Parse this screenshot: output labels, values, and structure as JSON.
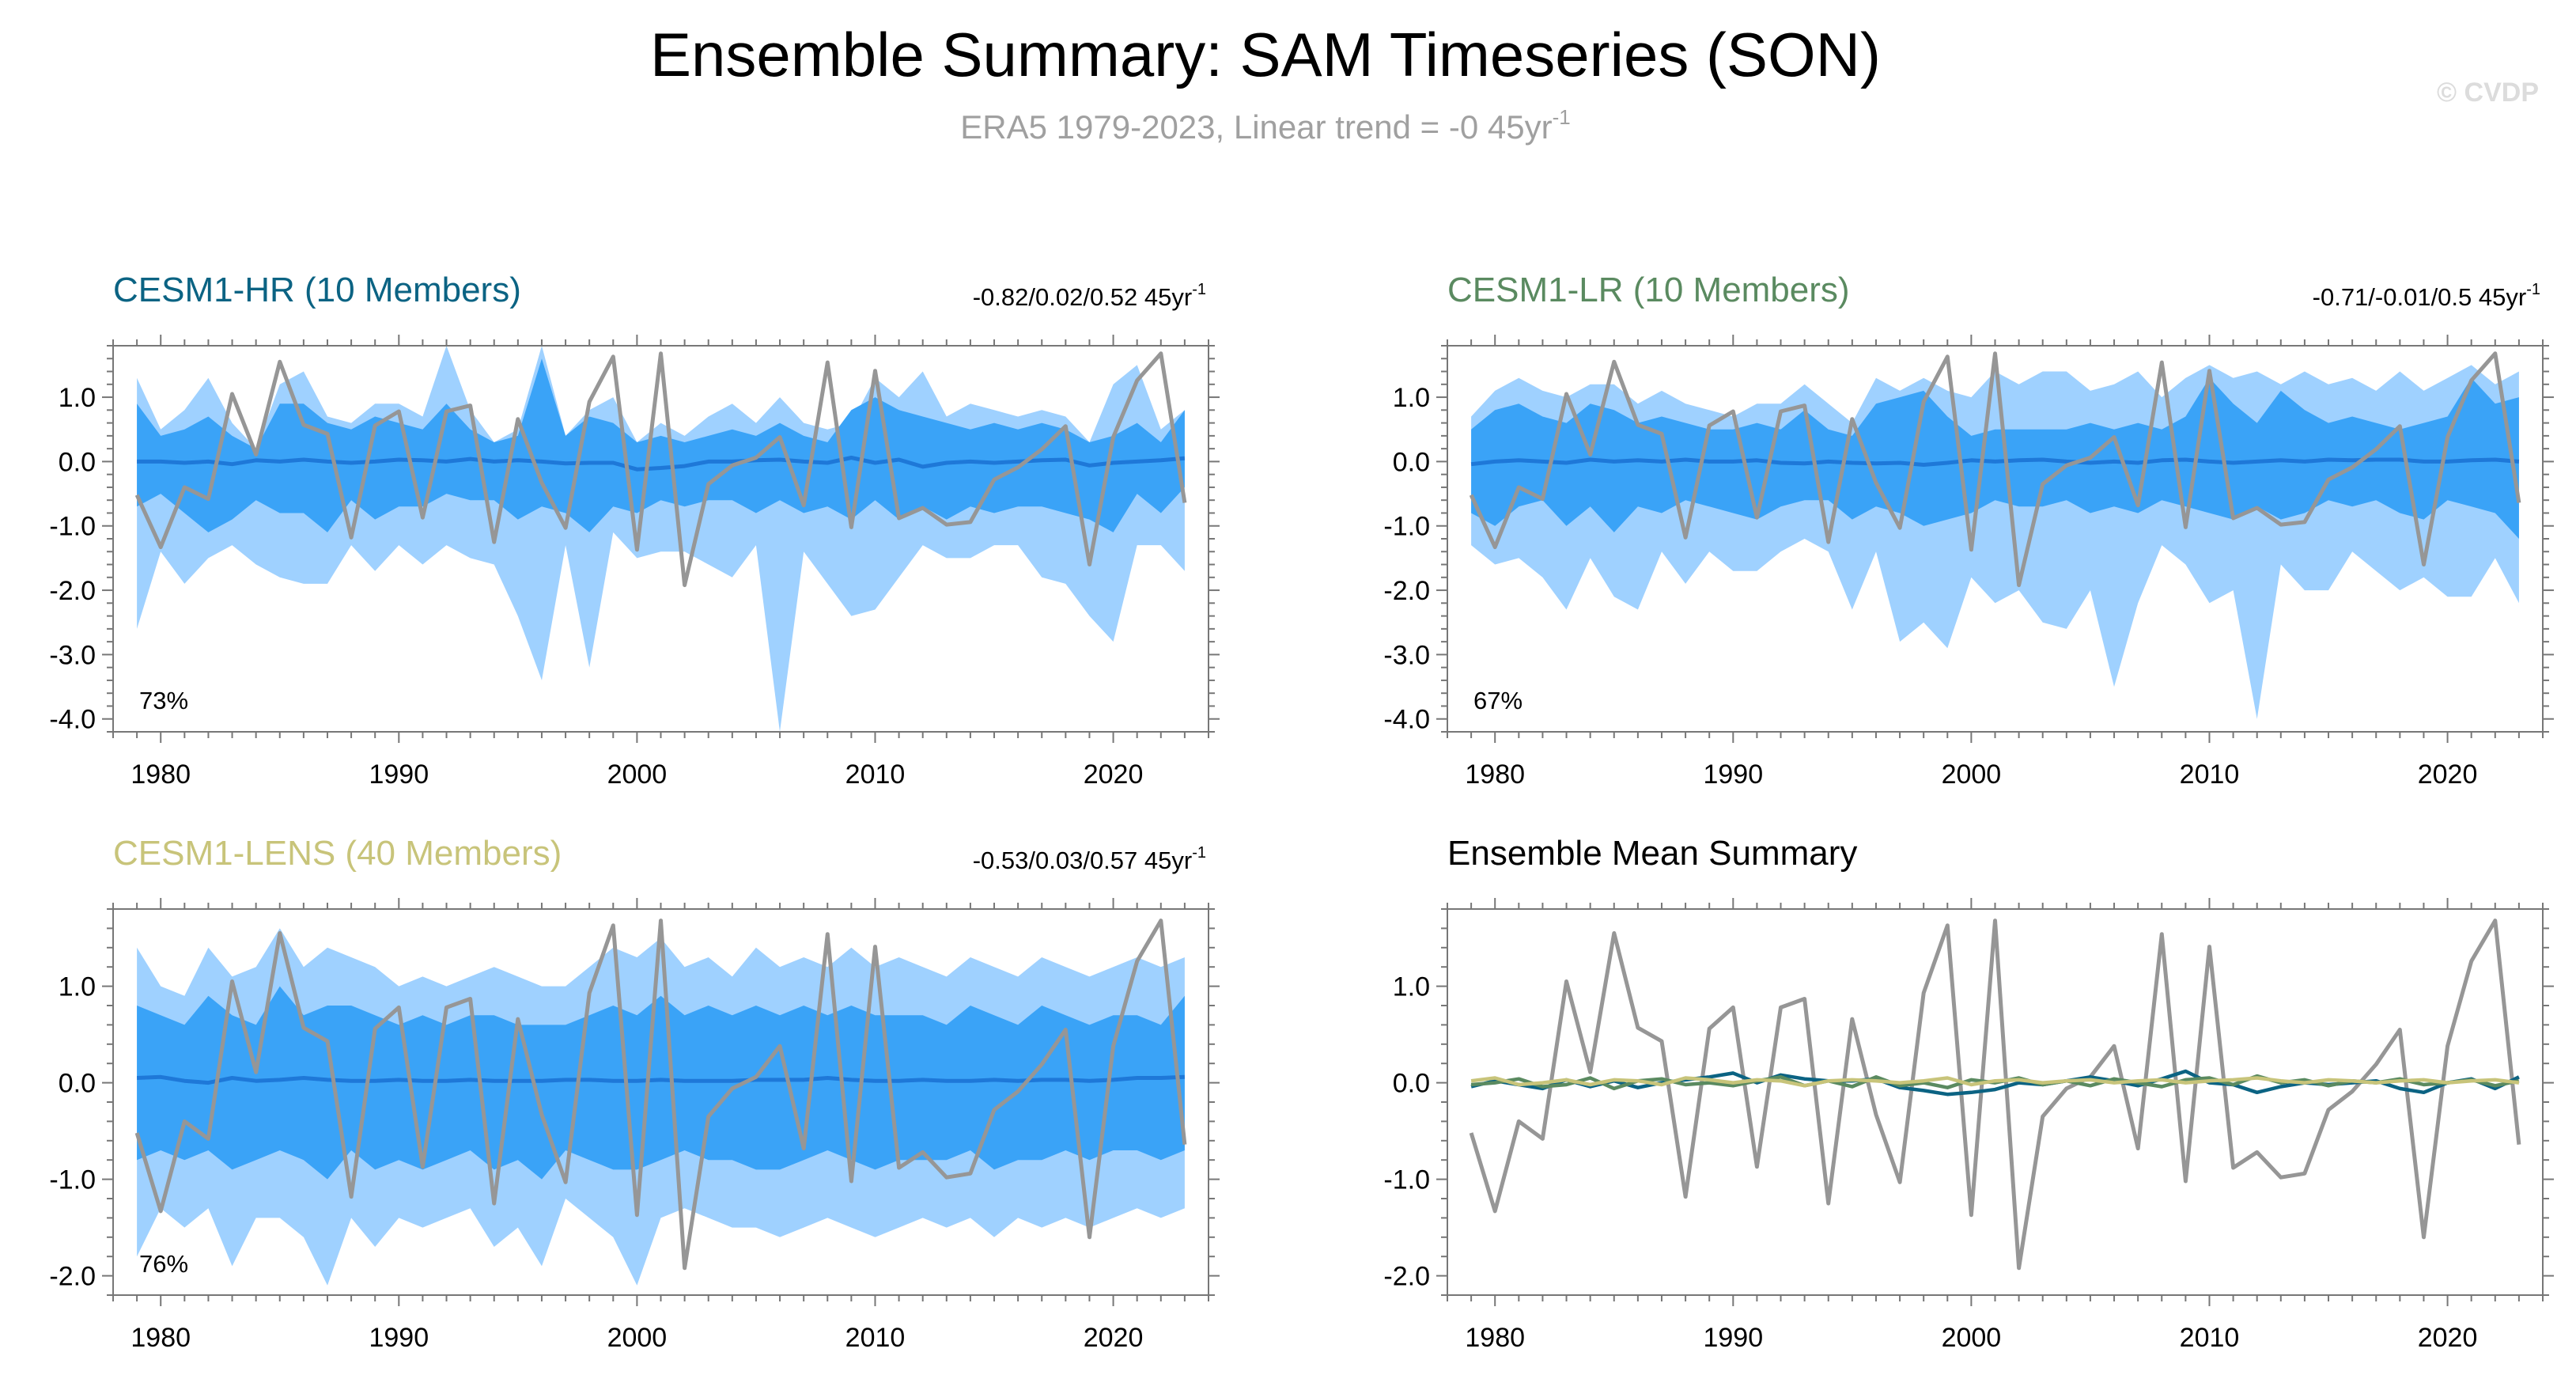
{
  "figure": {
    "title": "Ensemble Summary: SAM Timeseries (SON)",
    "subtitle_text": "ERA5 1979-2023, Linear trend = -0 45yr",
    "subtitle_sup": "-1",
    "credit": "© CVDP"
  },
  "colors": {
    "outer_band": "#9fd1ff",
    "inner_band": "#3aa3f7",
    "ens_mean_line": "#1e78d8",
    "obs_line": "#969696",
    "hr": "#0b6383",
    "lr": "#5a8a60",
    "lens": "#c8c47a"
  },
  "chart_data": [
    {
      "id": "hr",
      "type": "area",
      "title": "CESM1-HR (10 Members)",
      "stats_text": "-0.82/0.02/0.52 45yr",
      "stats_sup": "-1",
      "percent_label": "73%",
      "x_start": 1979,
      "xlim": [
        1978,
        2024
      ],
      "ylim": [
        -4.2,
        1.8
      ],
      "xticks": [
        1980,
        1990,
        2000,
        2010,
        2020
      ],
      "yticks": [
        1.0,
        0.0,
        -1.0,
        -2.0,
        -3.0,
        -4.0
      ],
      "ytick_labels": [
        "1.0",
        "0.0",
        "-1.0",
        "-2.0",
        "-3.0",
        "-4.0"
      ],
      "outer_upper": [
        1.3,
        0.5,
        0.8,
        1.3,
        0.6,
        0.2,
        1.2,
        1.4,
        0.7,
        0.6,
        0.9,
        0.9,
        0.7,
        1.8,
        0.8,
        0.3,
        0.5,
        1.8,
        0.4,
        0.8,
        1.0,
        0.3,
        0.6,
        0.4,
        0.7,
        0.9,
        0.6,
        1.0,
        0.6,
        0.5,
        0.6,
        1.3,
        1.0,
        1.4,
        0.7,
        0.9,
        0.8,
        0.7,
        0.8,
        0.7,
        0.3,
        1.2,
        1.5,
        0.5,
        0.8
      ],
      "outer_lower": [
        -2.6,
        -1.4,
        -1.9,
        -1.5,
        -1.3,
        -1.6,
        -1.8,
        -1.9,
        -1.9,
        -1.3,
        -1.7,
        -1.3,
        -1.6,
        -1.3,
        -1.5,
        -1.6,
        -2.4,
        -3.4,
        -1.3,
        -3.2,
        -1.1,
        -1.5,
        -1.4,
        -1.4,
        -1.6,
        -1.8,
        -1.3,
        -4.2,
        -1.4,
        -1.9,
        -2.4,
        -2.3,
        -1.8,
        -1.3,
        -1.5,
        -1.5,
        -1.3,
        -1.3,
        -1.8,
        -1.9,
        -2.4,
        -2.8,
        -1.3,
        -1.3,
        -1.7
      ],
      "inner_upper": [
        0.9,
        0.4,
        0.5,
        0.7,
        0.4,
        0.2,
        0.9,
        0.9,
        0.6,
        0.5,
        0.7,
        0.6,
        0.5,
        0.9,
        0.5,
        0.3,
        0.4,
        1.6,
        0.4,
        0.7,
        0.6,
        0.3,
        0.4,
        0.3,
        0.4,
        0.5,
        0.4,
        0.6,
        0.4,
        0.3,
        0.8,
        1.0,
        0.8,
        0.7,
        0.6,
        0.5,
        0.6,
        0.5,
        0.6,
        0.5,
        0.3,
        0.4,
        0.6,
        0.3,
        0.8
      ],
      "inner_lower": [
        -0.7,
        -0.5,
        -0.8,
        -1.1,
        -0.9,
        -0.6,
        -0.8,
        -0.8,
        -1.1,
        -0.6,
        -0.9,
        -0.7,
        -0.7,
        -0.5,
        -0.6,
        -0.6,
        -0.9,
        -0.7,
        -0.8,
        -1.1,
        -0.7,
        -0.8,
        -0.6,
        -0.7,
        -0.6,
        -0.6,
        -0.8,
        -0.6,
        -0.8,
        -0.7,
        -0.9,
        -0.6,
        -0.9,
        -0.7,
        -0.9,
        -0.7,
        -0.8,
        -0.7,
        -0.7,
        -0.8,
        -0.9,
        -1.1,
        -0.5,
        -0.8,
        -0.4
      ],
      "ensemble_mean": [
        0.0,
        0.0,
        -0.02,
        0.0,
        -0.04,
        0.02,
        0.0,
        0.03,
        0.0,
        -0.02,
        0.0,
        0.03,
        0.02,
        0.0,
        0.04,
        0.0,
        0.02,
        0.0,
        -0.03,
        -0.02,
        -0.02,
        -0.12,
        -0.1,
        -0.07,
        0.0,
        0.0,
        0.02,
        0.03,
        0.0,
        -0.02,
        0.06,
        -0.02,
        0.03,
        -0.08,
        -0.02,
        0.0,
        -0.02,
        0.0,
        0.02,
        0.03,
        -0.06,
        -0.02,
        0.0,
        0.02,
        0.05
      ],
      "observed": [
        -0.52,
        -1.33,
        -0.4,
        -0.58,
        1.05,
        0.11,
        1.55,
        0.57,
        0.43,
        -1.18,
        0.56,
        0.78,
        -0.87,
        0.78,
        0.87,
        -1.25,
        0.66,
        -0.33,
        -1.03,
        0.93,
        1.63,
        -1.37,
        1.68,
        -1.92,
        -0.35,
        -0.06,
        0.06,
        0.38,
        -0.68,
        1.54,
        -1.02,
        1.41,
        -0.88,
        -0.72,
        -0.98,
        -0.94,
        -0.28,
        -0.09,
        0.19,
        0.55,
        -1.6,
        0.38,
        1.26,
        1.68,
        -0.64
      ]
    },
    {
      "id": "lr",
      "type": "area",
      "title": "CESM1-LR (10 Members)",
      "stats_text": "-0.71/-0.01/0.5 45yr",
      "stats_sup": "-1",
      "percent_label": "67%",
      "x_start": 1979,
      "xlim": [
        1978,
        2024
      ],
      "ylim": [
        -4.2,
        1.8
      ],
      "xticks": [
        1980,
        1990,
        2000,
        2010,
        2020
      ],
      "yticks": [
        1.0,
        0.0,
        -1.0,
        -2.0,
        -3.0,
        -4.0
      ],
      "ytick_labels": [
        "1.0",
        "0.0",
        "-1.0",
        "-2.0",
        "-3.0",
        "-4.0"
      ],
      "outer_upper": [
        0.7,
        1.1,
        1.3,
        1.1,
        1.0,
        1.2,
        1.2,
        0.9,
        1.1,
        0.9,
        0.8,
        0.7,
        0.9,
        0.9,
        1.2,
        0.9,
        0.6,
        1.3,
        1.1,
        1.3,
        1.1,
        1.0,
        1.4,
        1.2,
        1.4,
        1.4,
        1.1,
        1.2,
        1.4,
        1.0,
        1.3,
        1.5,
        1.3,
        1.4,
        1.2,
        1.4,
        1.2,
        1.3,
        1.1,
        1.4,
        1.1,
        1.3,
        1.5,
        1.2,
        1.4
      ],
      "outer_lower": [
        -1.3,
        -1.6,
        -1.5,
        -1.8,
        -2.3,
        -1.5,
        -2.1,
        -2.3,
        -1.4,
        -1.9,
        -1.4,
        -1.7,
        -1.7,
        -1.4,
        -1.2,
        -1.4,
        -2.3,
        -1.4,
        -2.8,
        -2.5,
        -2.9,
        -1.8,
        -2.2,
        -2.0,
        -2.5,
        -2.6,
        -2.0,
        -3.5,
        -2.2,
        -1.3,
        -1.6,
        -2.2,
        -2.0,
        -4.0,
        -1.6,
        -2.0,
        -2.0,
        -1.4,
        -1.7,
        -2.0,
        -1.8,
        -2.1,
        -2.1,
        -1.5,
        -2.2
      ],
      "inner_upper": [
        0.5,
        0.8,
        0.9,
        0.7,
        0.6,
        0.9,
        0.8,
        0.6,
        0.7,
        0.6,
        0.5,
        0.5,
        0.6,
        0.5,
        0.8,
        0.5,
        0.4,
        0.9,
        1.0,
        1.1,
        0.7,
        0.4,
        0.5,
        0.5,
        0.5,
        0.5,
        0.6,
        0.5,
        0.6,
        0.5,
        0.7,
        1.3,
        0.9,
        0.6,
        1.1,
        0.8,
        0.6,
        0.7,
        0.6,
        0.5,
        0.6,
        0.7,
        1.3,
        0.9,
        1.0
      ],
      "inner_lower": [
        -0.8,
        -1.0,
        -0.7,
        -0.6,
        -1.0,
        -0.7,
        -1.1,
        -0.7,
        -0.8,
        -0.6,
        -0.7,
        -0.8,
        -0.9,
        -0.7,
        -0.6,
        -0.6,
        -0.9,
        -0.7,
        -0.8,
        -1.0,
        -0.9,
        -0.8,
        -0.6,
        -0.7,
        -0.7,
        -0.6,
        -0.8,
        -0.7,
        -0.8,
        -0.6,
        -0.7,
        -0.8,
        -0.9,
        -0.7,
        -0.9,
        -0.8,
        -0.6,
        -0.7,
        -0.6,
        -0.8,
        -0.9,
        -0.6,
        -0.7,
        -0.8,
        -1.2
      ],
      "ensemble_mean": [
        -0.04,
        0.0,
        0.02,
        0.0,
        -0.02,
        0.03,
        0.0,
        0.02,
        0.0,
        0.03,
        0.0,
        0.0,
        0.02,
        -0.02,
        -0.03,
        0.0,
        -0.02,
        -0.03,
        -0.02,
        -0.05,
        -0.02,
        0.02,
        0.0,
        0.02,
        0.03,
        0.0,
        -0.02,
        0.0,
        -0.02,
        0.02,
        0.03,
        0.0,
        -0.02,
        0.0,
        0.02,
        0.0,
        0.03,
        0.02,
        0.03,
        0.03,
        0.0,
        0.0,
        0.02,
        0.03,
        0.0
      ],
      "observed": [
        -0.52,
        -1.33,
        -0.4,
        -0.58,
        1.05,
        0.11,
        1.55,
        0.57,
        0.43,
        -1.18,
        0.56,
        0.78,
        -0.87,
        0.78,
        0.87,
        -1.25,
        0.66,
        -0.33,
        -1.03,
        0.93,
        1.63,
        -1.37,
        1.68,
        -1.92,
        -0.35,
        -0.06,
        0.06,
        0.38,
        -0.68,
        1.54,
        -1.02,
        1.41,
        -0.88,
        -0.72,
        -0.98,
        -0.94,
        -0.28,
        -0.09,
        0.19,
        0.55,
        -1.6,
        0.38,
        1.26,
        1.68,
        -0.64
      ]
    },
    {
      "id": "lens",
      "type": "area",
      "title": "CESM1-LENS (40 Members)",
      "stats_text": "-0.53/0.03/0.57 45yr",
      "stats_sup": "-1",
      "percent_label": "76%",
      "x_start": 1979,
      "xlim": [
        1978,
        2024
      ],
      "ylim": [
        -2.2,
        1.8
      ],
      "xticks": [
        1980,
        1990,
        2000,
        2010,
        2020
      ],
      "yticks": [
        1.0,
        0.0,
        -1.0,
        -2.0
      ],
      "ytick_labels": [
        "1.0",
        "0.0",
        "-1.0",
        "-2.0"
      ],
      "outer_upper": [
        1.4,
        1.0,
        0.9,
        1.4,
        1.1,
        1.2,
        1.6,
        1.2,
        1.4,
        1.3,
        1.2,
        1.0,
        1.1,
        1.0,
        1.1,
        1.2,
        1.1,
        1.0,
        1.0,
        1.2,
        1.4,
        1.3,
        1.5,
        1.2,
        1.3,
        1.1,
        1.4,
        1.2,
        1.3,
        1.2,
        1.4,
        1.2,
        1.3,
        1.2,
        1.1,
        1.3,
        1.2,
        1.1,
        1.3,
        1.2,
        1.1,
        1.2,
        1.3,
        1.2,
        1.3
      ],
      "outer_lower": [
        -1.8,
        -1.3,
        -1.5,
        -1.3,
        -1.9,
        -1.4,
        -1.4,
        -1.6,
        -2.1,
        -1.4,
        -1.7,
        -1.4,
        -1.5,
        -1.4,
        -1.3,
        -1.7,
        -1.5,
        -1.9,
        -1.2,
        -1.4,
        -1.6,
        -2.1,
        -1.4,
        -1.3,
        -1.4,
        -1.5,
        -1.5,
        -1.6,
        -1.5,
        -1.4,
        -1.5,
        -1.6,
        -1.5,
        -1.4,
        -1.5,
        -1.4,
        -1.6,
        -1.4,
        -1.5,
        -1.4,
        -1.5,
        -1.4,
        -1.3,
        -1.4,
        -1.3
      ],
      "inner_upper": [
        0.8,
        0.7,
        0.6,
        0.9,
        0.7,
        0.6,
        1.0,
        0.7,
        0.8,
        0.8,
        0.7,
        0.6,
        0.7,
        0.6,
        0.7,
        0.7,
        0.6,
        0.6,
        0.6,
        0.7,
        0.8,
        0.7,
        0.9,
        0.7,
        0.8,
        0.7,
        0.8,
        0.7,
        0.8,
        0.7,
        0.8,
        0.7,
        0.7,
        0.7,
        0.6,
        0.8,
        0.7,
        0.6,
        0.8,
        0.7,
        0.6,
        0.7,
        0.7,
        0.6,
        0.9
      ],
      "inner_lower": [
        -0.8,
        -0.7,
        -0.8,
        -0.7,
        -0.9,
        -0.8,
        -0.7,
        -0.8,
        -1.0,
        -0.7,
        -0.9,
        -0.8,
        -0.9,
        -0.8,
        -0.7,
        -0.9,
        -0.8,
        -1.0,
        -0.7,
        -0.8,
        -0.9,
        -0.9,
        -0.8,
        -0.7,
        -0.8,
        -0.8,
        -0.9,
        -0.9,
        -0.8,
        -0.7,
        -0.8,
        -0.9,
        -0.8,
        -0.8,
        -0.8,
        -0.7,
        -0.9,
        -0.8,
        -0.8,
        -0.7,
        -0.8,
        -0.7,
        -0.7,
        -0.8,
        -0.7
      ],
      "ensemble_mean": [
        0.05,
        0.06,
        0.02,
        0.0,
        0.05,
        0.02,
        0.03,
        0.05,
        0.03,
        0.02,
        0.02,
        0.03,
        0.02,
        0.02,
        0.03,
        0.02,
        0.02,
        0.02,
        0.03,
        0.03,
        0.02,
        0.02,
        0.03,
        0.02,
        0.02,
        0.02,
        0.03,
        0.03,
        0.03,
        0.05,
        0.03,
        0.02,
        0.02,
        0.03,
        0.02,
        0.02,
        0.03,
        0.02,
        0.03,
        0.03,
        0.02,
        0.03,
        0.05,
        0.05,
        0.06
      ],
      "observed": [
        -0.52,
        -1.33,
        -0.4,
        -0.58,
        1.05,
        0.11,
        1.55,
        0.57,
        0.43,
        -1.18,
        0.56,
        0.78,
        -0.87,
        0.78,
        0.87,
        -1.25,
        0.66,
        -0.33,
        -1.03,
        0.93,
        1.63,
        -1.37,
        1.68,
        -1.92,
        -0.35,
        -0.06,
        0.06,
        0.38,
        -0.68,
        1.54,
        -1.02,
        1.41,
        -0.88,
        -0.72,
        -0.98,
        -0.94,
        -0.28,
        -0.09,
        0.19,
        0.55,
        -1.6,
        0.38,
        1.26,
        1.68,
        -0.64
      ]
    },
    {
      "id": "summary",
      "type": "line",
      "title": "Ensemble Mean Summary",
      "x_start": 1979,
      "xlim": [
        1978,
        2024
      ],
      "ylim": [
        -2.2,
        1.8
      ],
      "xticks": [
        1980,
        1990,
        2000,
        2010,
        2020
      ],
      "yticks": [
        1.0,
        0.0,
        -1.0,
        -2.0
      ],
      "ytick_labels": [
        "1.0",
        "0.0",
        "-1.0",
        "-2.0"
      ],
      "series": [
        {
          "name": "ERA5",
          "color": "#969696",
          "values": [
            -0.52,
            -1.33,
            -0.4,
            -0.58,
            1.05,
            0.11,
            1.55,
            0.57,
            0.43,
            -1.18,
            0.56,
            0.78,
            -0.87,
            0.78,
            0.87,
            -1.25,
            0.66,
            -0.33,
            -1.03,
            0.93,
            1.63,
            -1.37,
            1.68,
            -1.92,
            -0.35,
            -0.06,
            0.06,
            0.38,
            -0.68,
            1.54,
            -1.02,
            1.41,
            -0.88,
            -0.72,
            -0.98,
            -0.94,
            -0.28,
            -0.09,
            0.19,
            0.55,
            -1.6,
            0.38,
            1.26,
            1.68,
            -0.64
          ]
        },
        {
          "name": "CESM1-HR",
          "color": "#0b6383",
          "values": [
            -0.04,
            0.02,
            -0.02,
            -0.06,
            0.03,
            -0.04,
            0.02,
            -0.05,
            0.0,
            0.03,
            0.06,
            0.1,
            0.0,
            0.08,
            0.04,
            0.02,
            0.02,
            0.04,
            -0.05,
            -0.08,
            -0.12,
            -0.1,
            -0.07,
            0.0,
            -0.02,
            0.02,
            0.06,
            0.02,
            -0.03,
            0.04,
            0.12,
            0.0,
            -0.02,
            -0.1,
            -0.04,
            0.0,
            -0.02,
            0.0,
            0.02,
            -0.06,
            -0.1,
            0.0,
            0.04,
            -0.06,
            0.06
          ]
        },
        {
          "name": "CESM1-LR",
          "color": "#5a8a60",
          "values": [
            -0.02,
            0.0,
            0.04,
            -0.04,
            -0.02,
            0.05,
            -0.06,
            0.02,
            0.04,
            -0.02,
            0.0,
            -0.03,
            0.02,
            0.06,
            -0.03,
            0.02,
            -0.04,
            0.06,
            -0.03,
            0.0,
            -0.05,
            0.03,
            0.0,
            0.05,
            -0.02,
            0.02,
            -0.03,
            0.04,
            0.0,
            -0.04,
            0.03,
            0.05,
            -0.02,
            0.07,
            0.0,
            0.03,
            -0.03,
            0.02,
            0.0,
            0.04,
            -0.02,
            0.0,
            0.03,
            -0.03,
            0.02
          ]
        },
        {
          "name": "CESM1-LENS",
          "color": "#c8c47a",
          "values": [
            0.02,
            0.05,
            -0.02,
            0.0,
            0.03,
            -0.02,
            0.03,
            0.02,
            -0.02,
            0.05,
            0.03,
            0.0,
            0.03,
            0.02,
            -0.03,
            0.02,
            0.03,
            0.02,
            0.0,
            0.02,
            0.05,
            -0.02,
            0.02,
            0.03,
            0.0,
            0.02,
            0.03,
            0.0,
            0.02,
            0.03,
            0.0,
            0.02,
            0.03,
            0.05,
            0.02,
            0.0,
            0.03,
            0.02,
            0.0,
            0.02,
            0.03,
            0.0,
            0.02,
            0.03,
            0.0
          ]
        }
      ]
    }
  ]
}
